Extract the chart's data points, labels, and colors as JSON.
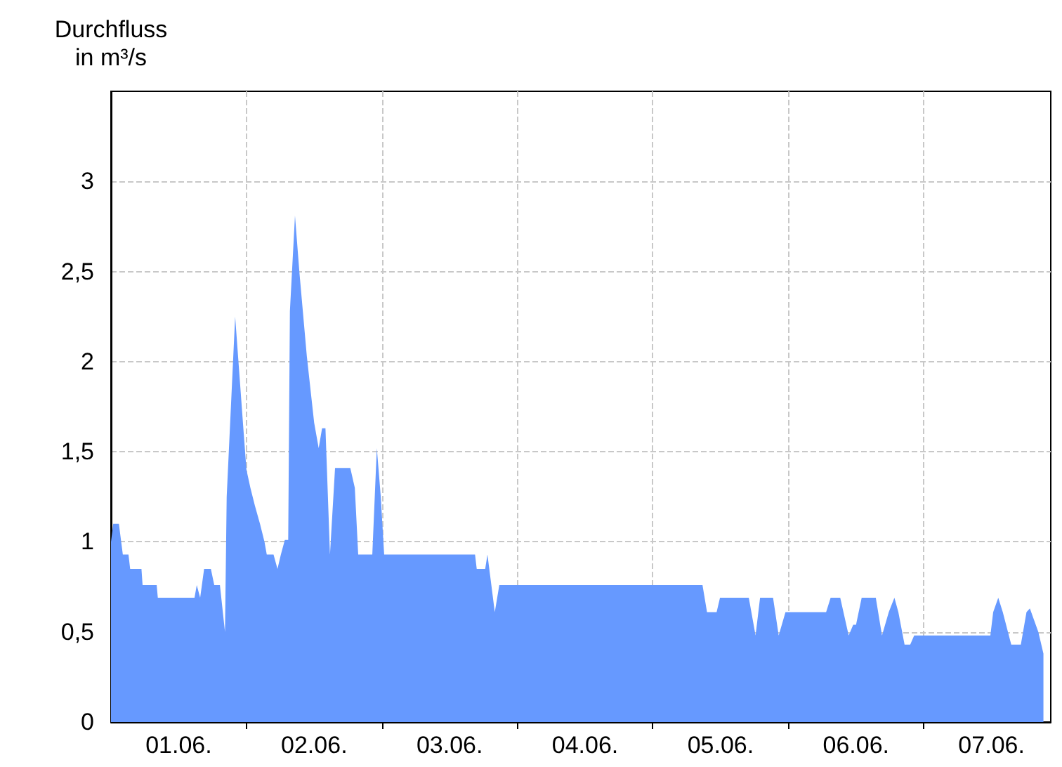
{
  "chart_data": {
    "type": "area",
    "ylabel": "Durchfluss\nin m³/s",
    "x": [
      "--06-01T00:00",
      "--06-01T00:24",
      "--06-01T01:24",
      "--06-01T02:06",
      "--06-01T03:06",
      "--06-01T03:24",
      "--06-01T05:24",
      "--06-01T05:36",
      "--06-01T08:06",
      "--06-01T08:18",
      "--06-01T14:48",
      "--06-01T15:12",
      "--06-01T15:48",
      "--06-01T16:30",
      "--06-01T17:42",
      "--06-01T18:18",
      "--06-01T19:18",
      "--06-01T20:12",
      "--06-01T20:30",
      "--06-01T22:00",
      "--06-01T23:30",
      "--06-02T00:00",
      "--06-02T00:42",
      "--06-02T01:30",
      "--06-02T02:24",
      "--06-02T03:12",
      "--06-02T03:36",
      "--06-02T04:48",
      "--06-02T05:30",
      "--06-02T06:06",
      "--06-02T06:48",
      "--06-02T07:24",
      "--06-02T07:42",
      "--06-02T08:36",
      "--06-02T09:24",
      "--06-02T10:42",
      "--06-02T12:00",
      "--06-02T12:48",
      "--06-02T13:24",
      "--06-02T14:00",
      "--06-02T14:48",
      "--06-02T15:42",
      "--06-02T18:24",
      "--06-02T19:12",
      "--06-02T19:48",
      "--06-02T22:18",
      "--06-02T23:06",
      "--06-02T23:48",
      "--06-03T00:24",
      "--06-03T16:30",
      "--06-03T16:48",
      "--06-03T18:18",
      "--06-03T18:42",
      "--06-03T20:00",
      "--06-03T20:48",
      "--06-05T08:48",
      "--06-05T09:36",
      "--06-05T11:18",
      "--06-05T11:54",
      "--06-05T17:00",
      "--06-05T18:12",
      "--06-05T19:00",
      "--06-05T21:18",
      "--06-05T22:18",
      "--06-05T23:30",
      "--06-06T06:42",
      "--06-06T07:30",
      "--06-06T09:12",
      "--06-06T10:42",
      "--06-06T11:30",
      "--06-06T12:00",
      "--06-06T13:00",
      "--06-06T15:30",
      "--06-06T16:36",
      "--06-06T17:48",
      "--06-06T18:48",
      "--06-06T19:30",
      "--06-06T20:36",
      "--06-06T21:36",
      "--06-06T22:18",
      "--06-07T11:48",
      "--06-07T12:18",
      "--06-07T13:12",
      "--06-07T14:00",
      "--06-07T15:30",
      "--06-07T17:12",
      "--06-07T18:12",
      "--06-07T18:48",
      "--06-07T20:18",
      "--06-07T21:12"
    ],
    "values": [
      1.0,
      1.1,
      1.1,
      0.93,
      0.93,
      0.85,
      0.85,
      0.76,
      0.76,
      0.69,
      0.69,
      0.76,
      0.69,
      0.85,
      0.85,
      0.76,
      0.76,
      0.5,
      1.25,
      2.25,
      1.61,
      1.4,
      1.3,
      1.2,
      1.1,
      1.0,
      0.93,
      0.93,
      0.85,
      0.93,
      1.01,
      1.01,
      2.28,
      2.81,
      2.49,
      2.03,
      1.66,
      1.52,
      1.63,
      1.63,
      0.93,
      1.41,
      1.41,
      1.3,
      0.93,
      0.93,
      1.52,
      1.25,
      0.93,
      0.93,
      0.85,
      0.85,
      0.93,
      0.61,
      0.76,
      0.76,
      0.61,
      0.61,
      0.69,
      0.69,
      0.48,
      0.69,
      0.69,
      0.48,
      0.61,
      0.61,
      0.69,
      0.69,
      0.48,
      0.54,
      0.54,
      0.69,
      0.69,
      0.48,
      0.61,
      0.69,
      0.61,
      0.43,
      0.43,
      0.48,
      0.48,
      0.61,
      0.69,
      0.61,
      0.43,
      0.43,
      0.61,
      0.63,
      0.5,
      0.38
    ],
    "color": "#6699ff",
    "xlim": [
      "--06-01T00:00",
      "--06-07T22:30"
    ],
    "xticks": [
      {
        "value": "--06-01T12:00",
        "label": "01.06."
      },
      {
        "value": "--06-02T00:00",
        "label": null
      },
      {
        "value": "--06-02T12:00",
        "label": "02.06."
      },
      {
        "value": "--06-03T00:00",
        "label": null
      },
      {
        "value": "--06-03T12:00",
        "label": "03.06."
      },
      {
        "value": "--06-04T00:00",
        "label": null
      },
      {
        "value": "--06-04T12:00",
        "label": "04.06."
      },
      {
        "value": "--06-05T00:00",
        "label": null
      },
      {
        "value": "--06-05T12:00",
        "label": "05.06."
      },
      {
        "value": "--06-06T00:00",
        "label": null
      },
      {
        "value": "--06-06T12:00",
        "label": "06.06."
      },
      {
        "value": "--06-07T00:00",
        "label": null
      },
      {
        "value": "--06-07T12:00",
        "label": "07.06."
      }
    ],
    "ylim": [
      0,
      3.5
    ],
    "yticks": [
      {
        "value": 0,
        "label": "0"
      },
      {
        "value": 0.5,
        "label": "0,5"
      },
      {
        "value": 1,
        "label": "1"
      },
      {
        "value": 1.5,
        "label": "1,5"
      },
      {
        "value": 2,
        "label": "2"
      },
      {
        "value": 2.5,
        "label": "2,5"
      },
      {
        "value": 3,
        "label": "3"
      }
    ],
    "grid": true,
    "marker": "none"
  }
}
